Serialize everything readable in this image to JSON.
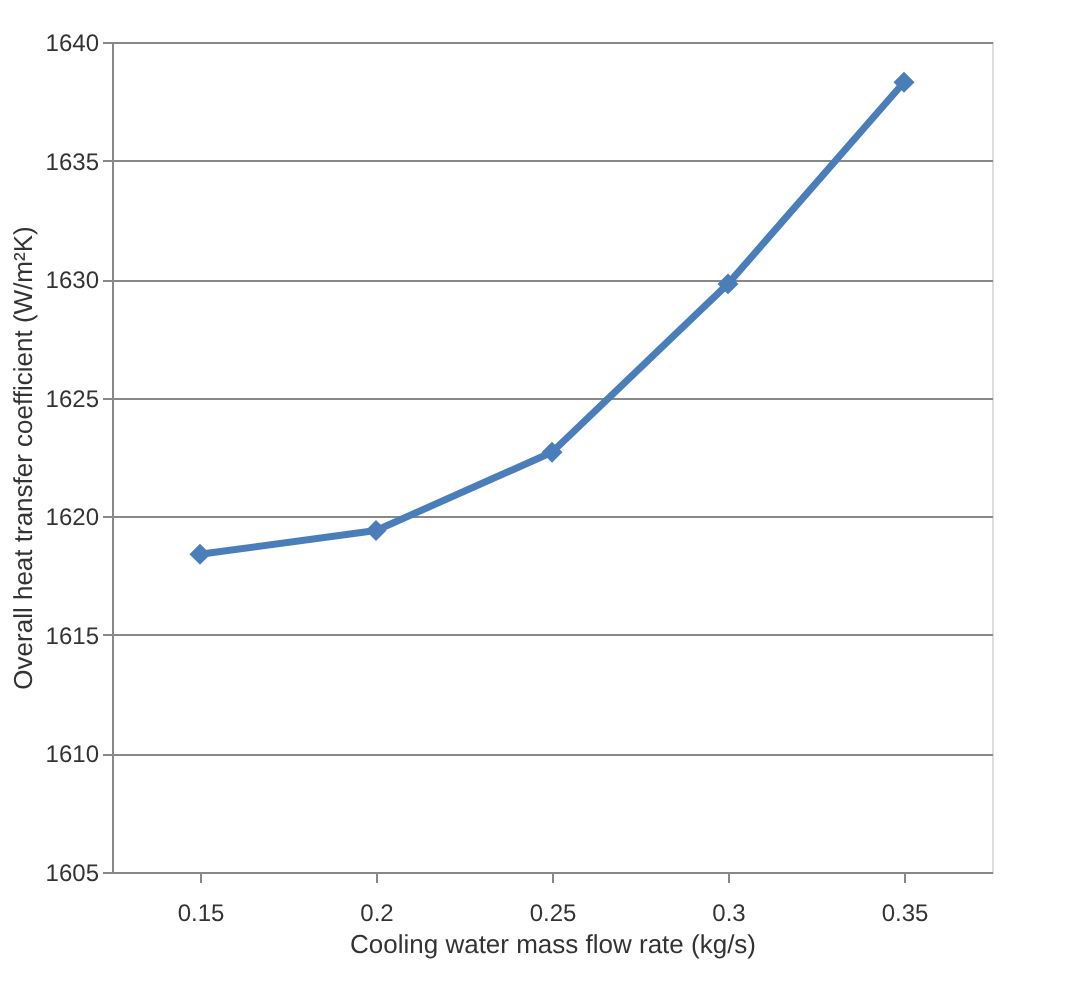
{
  "chart_data": {
    "type": "line",
    "xlabel": "Cooling water mass flow rate (kg/s)",
    "ylabel": "Overall heat transfer coefficient (W/m²K)",
    "categories": [
      "0.15",
      "0.2",
      "0.25",
      "0.3",
      "0.35"
    ],
    "series": [
      {
        "color": "#4a7ebb",
        "values": [
          1618.4,
          1619.4,
          1622.7,
          1629.8,
          1638.3
        ]
      }
    ],
    "ylim": [
      1605,
      1640
    ],
    "yticks": [
      1605,
      1610,
      1615,
      1620,
      1625,
      1630,
      1635,
      1640
    ],
    "grid": "y",
    "marker": "diamond",
    "line_style": "solid"
  }
}
